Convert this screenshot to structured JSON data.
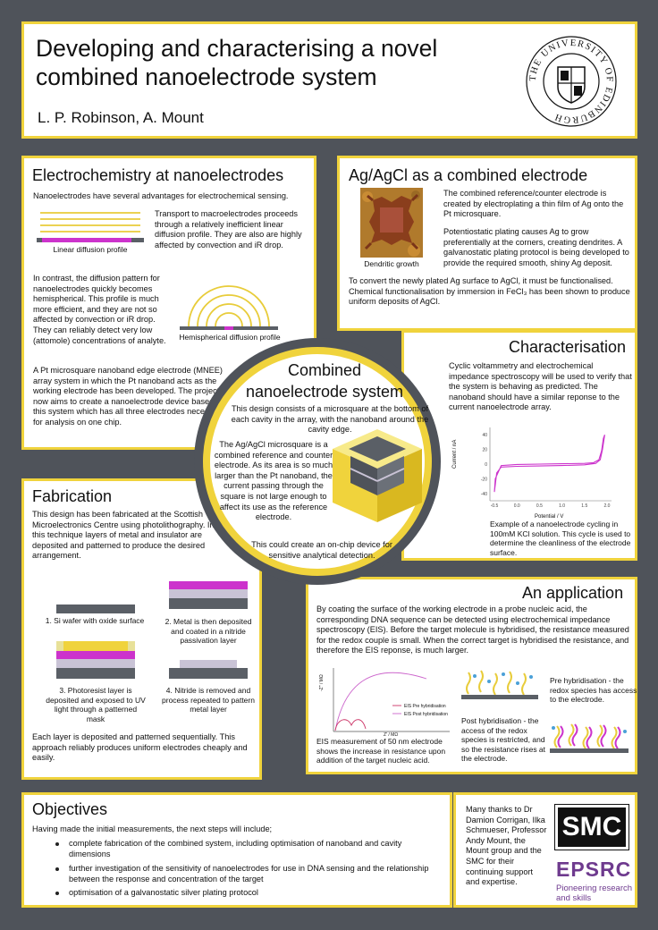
{
  "header": {
    "title_line1": "Developing and characterising a novel",
    "title_line2": "combined nanoelectrode system",
    "authors": "L. P. Robinson, A. Mount",
    "logo_ring_text": "THE UNIVERSITY OF EDINBURGH"
  },
  "nano": {
    "title": "Electrochemistry at nanoelectrodes",
    "intro": "Nanoelectrodes have several advantages for electrochemical sensing.",
    "macro_text": "Transport to macroelectrodes proceeds through a relatively inefficient linear diffusion profile. They are also are highly affected by convection and iR drop.",
    "linear_caption": "Linear diffusion profile",
    "hemi_text": "In contrast, the diffusion pattern for nanoelectrodes quickly becomes hemispherical. This profile is much more efficient, and they are not so affected by convection or iR drop. They can reliably detect very low (attomole) concentrations of analyte.",
    "hemi_caption": "Hemispherical diffusion profile",
    "mnee_text": "A Pt microsquare nanoband edge electrode (MNEE) array system in which the Pt nanoband acts as the working electrode has been developed. The project now aims to create a nanoelectrode device based on this system which has all three electrodes necessary for analysis on one chip."
  },
  "agcl": {
    "title": "Ag/AgCl as a combined electrode",
    "text1": "The combined reference/counter electrode is created by electroplating a thin film of Ag onto the Pt microsquare.",
    "text2": "Potentiostatic plating causes Ag to grow preferentially at the corners, creating dendrites. A galvanostatic plating protocol is being developed to provide the required smooth, shiny Ag deposit.",
    "caption": "Dendritic growth",
    "text3": "To convert the newly plated Ag surface to AgCl, it must be functionalised. Chemical functionalisation by immersion in FeCl₃ has been shown to produce uniform deposits of AgCl."
  },
  "combined": {
    "title_line1": "Combined",
    "title_line2": "nanoelectrode system",
    "text1": "This design consists of a microsquare at the bottom of each cavity in the array, with the nanoband around the cavity edge.",
    "text2": "The Ag/AgCl microsquare is a combined reference and counter electrode. As its area is so much larger than the Pt nanoband, the current passing through the square is not large enough to affect its use as the reference electrode.",
    "text3": "This could create an on-chip device for sensitive analytical detection."
  },
  "char": {
    "title": "Characterisation",
    "text": "Cyclic voltammetry and electrochemical impedance spectroscopy will be used to verify that the system is behaving as predicted. The nanoband should have a similar reponse to the current nanoelectrode array.",
    "caption": "Example of a nanoelectrode cycling in 100mM KCl solution. This cycle is used to determine the cleanliness of the electrode surface."
  },
  "cv_chart": {
    "ylabel": "Current / nA",
    "xlabel": "Potential / V",
    "xticks": [
      "-0.5",
      "0.0",
      "0.5",
      "1.0",
      "1.5",
      "2.0"
    ],
    "yticks": [
      "40",
      "20",
      "0",
      "-20",
      "-40"
    ]
  },
  "fab": {
    "title": "Fabrication",
    "intro": "This design has been fabricated at the Scottish Microelectronics Centre using photolithography. In this technique layers of metal and insulator are deposited and patterned to produce the desired arrangement.",
    "step1": "1. Si wafer with oxide surface",
    "step2": "2. Metal is then deposited and coated in a nitride passivation layer",
    "step3": "3. Photoresist layer is deposited and exposed to UV light through a patterned mask",
    "step4": "4. Nitride is removed and process repeated to pattern metal layer",
    "outro": "Each layer is deposited and patterned sequentially. This approach reliably produces uniform electrodes cheaply and easily."
  },
  "app": {
    "title": "An application",
    "text": "By coating the surface of the working electrode in a probe nucleic acid, the corresponding DNA sequence can be detected using electrochemical impedance spectroscopy (EIS). Before the target molecule is hybridised, the resistance measured for the redox couple is small. When the correct target is hybridised the resistance, and therefore the EIS reponse, is much larger.",
    "pre": "Pre hybridisation - the redox species has access to the electrode.",
    "post": "Post hybridisation - the access of the redox species is restricted, and so the resistance rises at the electrode.",
    "caption": "EIS measurement of 50 nm electrode shows the increase in resistance upon addition of the target nucleic acid.",
    "legend_pre": "EIS Pre hybridisation",
    "legend_post": "EIS Post hybridisation",
    "ylabel": "-Z'' / MΩ",
    "xlabel": "Z' / MΩ"
  },
  "objectives": {
    "title": "Objectives",
    "intro": "Having made the initial measurements, the next steps will include;",
    "items": [
      "complete fabrication of the combined system, including optimisation of nanoband and cavity dimensions",
      "further investigation of the sensitivity of nanoelectrodes for use in DNA sensing and the relationship between the response and concentration of the target",
      "optimisation of a galvanostatic silver plating protocol"
    ]
  },
  "thanks": {
    "text": "Many thanks to Dr Damion Corrigan, Ilka Schmueser, Professor Andy Mount, the Mount group and the SMC for their continuing support and expertise.",
    "smc": "SMC",
    "epsrc": "EPSRC",
    "tagline": "Pioneering research and skills"
  },
  "colors": {
    "frame": "#4f535a",
    "accent": "#f0d33c",
    "magenta": "#cc33cc",
    "epsrc": "#6e3a8e"
  }
}
